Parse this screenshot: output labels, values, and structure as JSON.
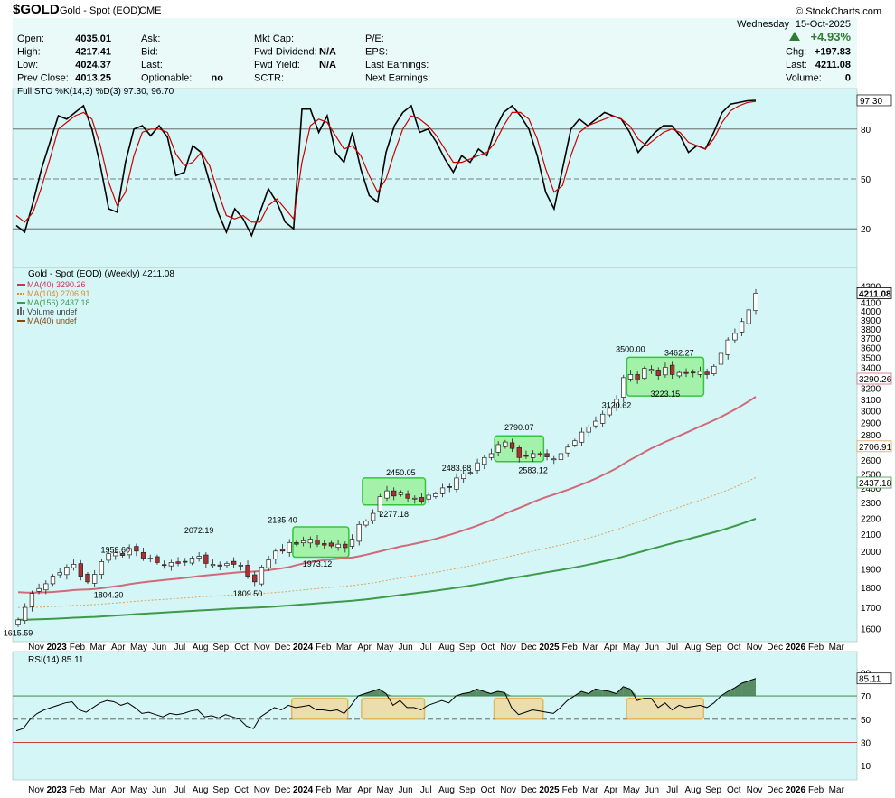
{
  "header": {
    "symbol": "$GOLD",
    "name": "Gold - Spot (EOD)",
    "exchange": "CME",
    "copyright": "© StockCharts.com",
    "day": "Wednesday",
    "date": "15-Oct-2025",
    "change_pct": "+4.93%",
    "quote_rows": [
      {
        "l1": "Open:",
        "v1": "4035.01",
        "l2": "Ask:",
        "l3": "Mkt Cap:",
        "v3": "",
        "l4": "P/E:",
        "r1": "",
        "r2": "",
        "direction": "up"
      },
      {
        "l1": "High:",
        "v1": "4217.41",
        "l2": "Bid:",
        "l3": "Fwd Dividend:",
        "v3": "N/A",
        "l4": "EPS:",
        "r1": "Chg:",
        "r2": "+197.83"
      },
      {
        "l1": "Low:",
        "v1": "4024.37",
        "l2": "Last:",
        "l3": "Fwd Yield:",
        "v3": "N/A",
        "l4": "Last Earnings:",
        "r1": "Last:",
        "r2": "4211.08"
      },
      {
        "l1": "Prev Close:",
        "v1": "4013.25",
        "l2": "Optionable:",
        "v2": "no",
        "l3": "SCTR:",
        "v3": "",
        "l4": "Next Earnings:",
        "r1": "Volume:",
        "r2": "0"
      }
    ]
  },
  "chart_data": [
    {
      "type": "line",
      "title": "Full STO %K(14,3) %D(3) 97.30, 96.70",
      "indicator": "stochastic",
      "last_values": {
        "k": "97.30",
        "d": "96.70"
      },
      "ylim": [
        0,
        100
      ],
      "y_ticks": [
        "80",
        "50",
        "20"
      ],
      "reference_lines": [
        80,
        50,
        20
      ],
      "series": [
        {
          "name": "%K",
          "color": "#000000",
          "values": [
            22,
            18,
            36,
            56,
            72,
            88,
            86,
            90,
            94,
            80,
            58,
            32,
            30,
            60,
            80,
            82,
            76,
            82,
            75,
            52,
            54,
            70,
            66,
            48,
            30,
            18,
            32,
            26,
            16,
            30,
            44,
            36,
            24,
            20,
            92,
            92,
            78,
            88,
            66,
            60,
            78,
            56,
            40,
            36,
            66,
            82,
            90,
            94,
            78,
            80,
            72,
            62,
            54,
            64,
            60,
            68,
            64,
            80,
            90,
            94,
            88,
            80,
            64,
            42,
            32,
            56,
            80,
            86,
            82,
            86,
            90,
            88,
            86,
            78,
            66,
            72,
            78,
            82,
            82,
            76,
            66,
            70,
            68,
            78,
            90,
            95,
            96,
            97,
            97.3
          ]
        },
        {
          "name": "%D",
          "color": "#cc0000",
          "values": [
            28,
            24,
            30,
            45,
            62,
            80,
            84,
            88,
            90,
            86,
            70,
            48,
            34,
            42,
            64,
            78,
            80,
            80,
            78,
            65,
            58,
            60,
            66,
            58,
            42,
            28,
            26,
            28,
            24,
            24,
            34,
            38,
            32,
            26,
            60,
            82,
            86,
            84,
            76,
            68,
            70,
            64,
            52,
            42,
            50,
            66,
            80,
            88,
            86,
            82,
            76,
            68,
            60,
            60,
            62,
            64,
            66,
            72,
            82,
            90,
            90,
            86,
            74,
            56,
            42,
            46,
            64,
            78,
            82,
            84,
            86,
            88,
            86,
            82,
            74,
            70,
            74,
            78,
            80,
            78,
            72,
            70,
            68,
            74,
            84,
            91,
            94,
            96,
            96.7
          ]
        }
      ]
    },
    {
      "type": "candlestick",
      "title": "Gold - Spot (EOD) (Weekly) 4211.08",
      "yscale": "log",
      "ylim": [
        1560,
        4350
      ],
      "y_ticks": [
        "1600",
        "1700",
        "1800",
        "1900",
        "2000",
        "2100",
        "2200",
        "2300",
        "2400",
        "2500",
        "2600",
        "2700",
        "2800",
        "2900",
        "3000",
        "3100",
        "3200",
        "3300",
        "3400",
        "3500",
        "3600",
        "3700",
        "3800",
        "3900",
        "4000",
        "4100",
        "4300"
      ],
      "last_price": "4211.08",
      "x_labels": [
        "Nov",
        "2023",
        "Feb",
        "Mar",
        "Apr",
        "May",
        "Jun",
        "Jul",
        "Aug",
        "Sep",
        "Oct",
        "Nov",
        "Dec",
        "2024",
        "Feb",
        "Mar",
        "Apr",
        "May",
        "Jun",
        "Jul",
        "Aug",
        "Sep",
        "Oct",
        "Nov",
        "Dec",
        "2025",
        "Feb",
        "Mar",
        "Apr",
        "May",
        "Jun",
        "Jul",
        "Aug",
        "Sep",
        "Oct",
        "Nov",
        "Dec",
        "2026",
        "Feb",
        "Mar"
      ],
      "legend": [
        {
          "label": "MA(40) 3290.26",
          "color": "#cc3355",
          "style": "solid"
        },
        {
          "label": "MA(104) 2706.91",
          "color": "#e08a2e",
          "style": "dotted"
        },
        {
          "label": "MA(156) 2437.18",
          "color": "#3c9a4a",
          "style": "solid"
        },
        {
          "label": "Volume undef",
          "color": "#666666",
          "style": "bars"
        },
        {
          "label": "MA(40) undef",
          "color": "#8b4513",
          "style": "solid"
        }
      ],
      "ma_last_labels": [
        "3290.26",
        "2706.91",
        "2437.18"
      ],
      "annotations": [
        "1615.59",
        "1804.20",
        "1959.60",
        "2072.19",
        "1809.50",
        "2135.40",
        "1973.12",
        "2277.18",
        "2450.05",
        "2483.68",
        "2790.07",
        "2583.12",
        "3500.00",
        "3462.27",
        "3120.62",
        "3223.15"
      ],
      "close": [
        1640,
        1700,
        1770,
        1795,
        1820,
        1860,
        1880,
        1910,
        1925,
        1860,
        1830,
        1870,
        1940,
        1985,
        1990,
        1975,
        2015,
        2000,
        1960,
        1960,
        1935,
        1920,
        1935,
        1930,
        1940,
        1960,
        1970,
        1930,
        1925,
        1915,
        1930,
        1925,
        1920,
        1860,
        1830,
        1910,
        1950,
        2000,
        2000,
        2050,
        2040,
        2060,
        2070,
        2040,
        2035,
        2030,
        2040,
        2020,
        2070,
        2160,
        2180,
        2230,
        2340,
        2380,
        2345,
        2370,
        2330,
        2330,
        2310,
        2350,
        2360,
        2400,
        2405,
        2470,
        2500,
        2510,
        2580,
        2620,
        2650,
        2720,
        2740,
        2690,
        2620,
        2630,
        2650,
        2640,
        2625,
        2610,
        2650,
        2700,
        2750,
        2820,
        2860,
        2910,
        2970,
        3020,
        3100,
        3300,
        3330,
        3280,
        3390,
        3380,
        3320,
        3400,
        3330,
        3350,
        3340,
        3350,
        3360,
        3330,
        3410,
        3540,
        3680,
        3750,
        3880,
        4013,
        4211
      ]
    },
    {
      "type": "line",
      "title": "RSI(14) 85.11",
      "indicator": "rsi",
      "last_value": "85.11",
      "ylim": [
        0,
        95
      ],
      "y_ticks": [
        "90",
        "70",
        "50",
        "30",
        "10"
      ],
      "reference_lines": [
        70,
        50,
        30
      ],
      "x_labels": [
        "Nov",
        "2023",
        "Feb",
        "Mar",
        "Apr",
        "May",
        "Jun",
        "Jul",
        "Aug",
        "Sep",
        "Oct",
        "Nov",
        "Dec",
        "2024",
        "Feb",
        "Mar",
        "Apr",
        "May",
        "Jun",
        "Jul",
        "Aug",
        "Sep",
        "Oct",
        "Nov",
        "Dec",
        "2025",
        "Feb",
        "Mar",
        "Apr",
        "May",
        "Jun",
        "Jul",
        "Aug",
        "Sep",
        "Oct",
        "Nov",
        "Dec",
        "2026",
        "Feb",
        "Mar"
      ],
      "values": [
        40,
        42,
        50,
        55,
        58,
        60,
        62,
        64,
        65,
        58,
        56,
        60,
        64,
        66,
        65,
        62,
        64,
        60,
        55,
        56,
        54,
        52,
        55,
        54,
        55,
        57,
        58,
        52,
        53,
        51,
        54,
        52,
        50,
        44,
        42,
        52,
        56,
        60,
        58,
        62,
        60,
        61,
        62,
        58,
        58,
        57,
        58,
        55,
        62,
        70,
        72,
        74,
        76,
        72,
        62,
        66,
        60,
        60,
        58,
        62,
        64,
        66,
        64,
        70,
        72,
        73,
        76,
        74,
        72,
        74,
        73,
        60,
        54,
        56,
        58,
        57,
        56,
        55,
        60,
        66,
        70,
        74,
        72,
        76,
        75,
        74,
        72,
        78,
        76,
        66,
        68,
        68,
        60,
        64,
        58,
        62,
        60,
        61,
        62,
        60,
        64,
        70,
        74,
        77,
        81,
        83,
        85.11
      ]
    }
  ]
}
